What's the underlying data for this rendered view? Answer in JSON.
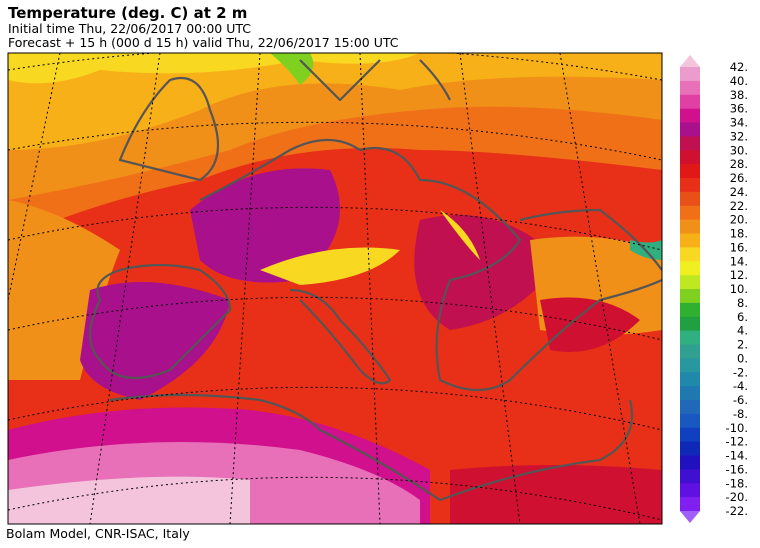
{
  "header": {
    "title": "Temperature (deg. C) at 2 m",
    "initial": "Initial time  Thu, 22/06/2017  00:00 UTC",
    "forecast": "Forecast  +  15 h  (000 d 15 h)  valid Thu, 22/06/2017 15:00 UTC"
  },
  "colorbar": {
    "labels": [
      "42.",
      "40.",
      "38.",
      "36.",
      "34.",
      "32.",
      "30.",
      "28.",
      "26.",
      "24.",
      "22.",
      "20.",
      "18.",
      "16.",
      "14.",
      "12.",
      "10.",
      "8.",
      "6.",
      "4.",
      "2.",
      "0.",
      "-2.",
      "-4.",
      "-6.",
      "-8.",
      "-10.",
      "-12.",
      "-14.",
      "-16.",
      "-18.",
      "-20.",
      "-22."
    ],
    "colors": [
      "#f4c4dc",
      "#ec9ccc",
      "#e870b8",
      "#e040a4",
      "#d0108c",
      "#a8108c",
      "#c01050",
      "#d01030",
      "#e01818",
      "#e83018",
      "#e85018",
      "#f07018",
      "#f09018",
      "#f8b018",
      "#f8d820",
      "#f0f020",
      "#c0e820",
      "#80d020",
      "#30b030",
      "#20a040",
      "#30b080",
      "#30a090",
      "#2898a0",
      "#2088a8",
      "#2078b0",
      "#2068b8",
      "#1858c0",
      "#1040c0",
      "#1028b8",
      "#2010c0",
      "#4010d0",
      "#6010e0",
      "#8020f0",
      "#a060f8"
    ]
  },
  "footer": "Bolam Model, CNR-ISAC, Italy"
}
